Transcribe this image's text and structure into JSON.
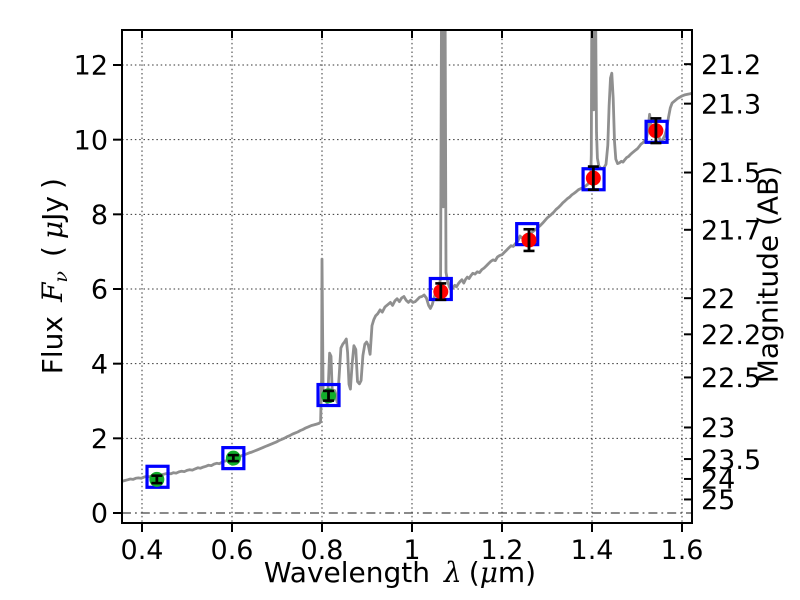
{
  "chart_data": {
    "type": "line",
    "description": "Galaxy SED: gray model spectrum with photometric points (green/red circles, black error bars) and blue squares for model photometry",
    "xlabel": {
      "word": "Wavelength",
      "lambda": "λ",
      "open": "(",
      "mu": "μ",
      "close": "m)"
    },
    "ylabel_left": {
      "word": "Flux",
      "f": "F",
      "nu": "ν",
      "open": "(",
      "mu": "μ",
      "unit": "Jy",
      "close": ")"
    },
    "ylabel_right": "Magnitude (AB)",
    "xlim": [
      0.356,
      1.622
    ],
    "ylim": [
      -0.27,
      12.94
    ],
    "grid": "dotted at major ticks; dash-dot horizontal line at flux 0; no legend; no title",
    "x_ticks": [
      {
        "v": 0.4,
        "label": "0.4"
      },
      {
        "v": 0.6,
        "label": "0.6"
      },
      {
        "v": 0.8,
        "label": "0.8"
      },
      {
        "v": 1.0,
        "label": "1"
      },
      {
        "v": 1.2,
        "label": "1.2"
      },
      {
        "v": 1.4,
        "label": "1.4"
      },
      {
        "v": 1.6,
        "label": "1.6"
      }
    ],
    "y_ticks_flux": [
      {
        "v": 0,
        "label": "0"
      },
      {
        "v": 2,
        "label": "2"
      },
      {
        "v": 4,
        "label": "4"
      },
      {
        "v": 6,
        "label": "6"
      },
      {
        "v": 8,
        "label": "8"
      },
      {
        "v": 10,
        "label": "10"
      },
      {
        "v": 12,
        "label": "12"
      }
    ],
    "y_ticks_mag": [
      {
        "label": "21.2",
        "flux": 12.023
      },
      {
        "label": "21.3",
        "flux": 10.965
      },
      {
        "label": "21.5",
        "flux": 9.12
      },
      {
        "label": "21.7",
        "flux": 7.586
      },
      {
        "label": "22",
        "flux": 5.754
      },
      {
        "label": "22.2",
        "flux": 4.786
      },
      {
        "label": "22.5",
        "flux": 3.631
      },
      {
        "label": "23",
        "flux": 2.291
      },
      {
        "label": "23.5",
        "flux": 1.445
      },
      {
        "label": "24",
        "flux": 0.912
      },
      {
        "label": "25",
        "flux": 0.363
      }
    ],
    "colors": {
      "spectrum": "#8f8f8f",
      "green_points": "#12ad2b",
      "red_points": "#ff0000",
      "model_squares": "#0000ff",
      "error_bars": "#000000",
      "grid": "#333333",
      "zero_line": "#444444",
      "frame": "#000000"
    },
    "photometry": [
      {
        "lam": 0.433,
        "flux": 0.9,
        "err": 0.1,
        "model_lam": 0.4345,
        "model_flux": 0.97,
        "color": "green"
      },
      {
        "lam": 0.603,
        "flux": 1.47,
        "err": 0.08,
        "model_lam": 0.603,
        "model_flux": 1.47,
        "color": "green"
      },
      {
        "lam": 0.8145,
        "flux": 3.14,
        "err": 0.13,
        "model_lam": 0.8145,
        "model_flux": 3.16,
        "color": "green"
      },
      {
        "lam": 1.064,
        "flux": 5.93,
        "err": 0.22,
        "model_lam": 1.064,
        "model_flux": 6.0,
        "color": "red"
      },
      {
        "lam": 1.26,
        "flux": 7.31,
        "err": 0.29,
        "model_lam": 1.256,
        "model_flux": 7.47,
        "color": "red"
      },
      {
        "lam": 1.403,
        "flux": 8.97,
        "err": 0.31,
        "model_lam": 1.4035,
        "model_flux": 8.94,
        "color": "red"
      },
      {
        "lam": 1.542,
        "flux": 10.24,
        "err": 0.33,
        "model_lam": 1.5435,
        "model_flux": 10.21,
        "color": "red"
      }
    ],
    "spectrum": [
      [
        0.356,
        0.85
      ],
      [
        0.362,
        0.87
      ],
      [
        0.368,
        0.89
      ],
      [
        0.374,
        0.91
      ],
      [
        0.38,
        0.9
      ],
      [
        0.386,
        0.93
      ],
      [
        0.392,
        0.94
      ],
      [
        0.398,
        0.93
      ],
      [
        0.404,
        0.96
      ],
      [
        0.41,
        0.98
      ],
      [
        0.416,
        0.97
      ],
      [
        0.422,
        0.99
      ],
      [
        0.428,
        1.01
      ],
      [
        0.434,
        1.02
      ],
      [
        0.44,
        1.01
      ],
      [
        0.446,
        1.03
      ],
      [
        0.452,
        1.05
      ],
      [
        0.458,
        1.06
      ],
      [
        0.464,
        1.05
      ],
      [
        0.47,
        1.08
      ],
      [
        0.476,
        1.07
      ],
      [
        0.482,
        1.1
      ],
      [
        0.488,
        1.12
      ],
      [
        0.494,
        1.11
      ],
      [
        0.5,
        1.14
      ],
      [
        0.506,
        1.16
      ],
      [
        0.512,
        1.15
      ],
      [
        0.518,
        1.18
      ],
      [
        0.524,
        1.21
      ],
      [
        0.53,
        1.2
      ],
      [
        0.536,
        1.23
      ],
      [
        0.542,
        1.25
      ],
      [
        0.548,
        1.28
      ],
      [
        0.554,
        1.27
      ],
      [
        0.56,
        1.31
      ],
      [
        0.566,
        1.33
      ],
      [
        0.572,
        1.32
      ],
      [
        0.578,
        1.36
      ],
      [
        0.584,
        1.39
      ],
      [
        0.59,
        1.41
      ],
      [
        0.596,
        1.43
      ],
      [
        0.602,
        1.46
      ],
      [
        0.608,
        1.48
      ],
      [
        0.614,
        1.5
      ],
      [
        0.62,
        1.53
      ],
      [
        0.626,
        1.55
      ],
      [
        0.632,
        1.58
      ],
      [
        0.638,
        1.61
      ],
      [
        0.644,
        1.63
      ],
      [
        0.65,
        1.66
      ],
      [
        0.656,
        1.69
      ],
      [
        0.662,
        1.72
      ],
      [
        0.668,
        1.75
      ],
      [
        0.674,
        1.78
      ],
      [
        0.68,
        1.81
      ],
      [
        0.686,
        1.84
      ],
      [
        0.692,
        1.87
      ],
      [
        0.698,
        1.9
      ],
      [
        0.704,
        1.94
      ],
      [
        0.71,
        1.97
      ],
      [
        0.716,
        2.0
      ],
      [
        0.722,
        2.04
      ],
      [
        0.728,
        2.07
      ],
      [
        0.734,
        2.11
      ],
      [
        0.74,
        2.14
      ],
      [
        0.746,
        2.17
      ],
      [
        0.752,
        2.21
      ],
      [
        0.758,
        2.24
      ],
      [
        0.764,
        2.28
      ],
      [
        0.77,
        2.31
      ],
      [
        0.776,
        2.34
      ],
      [
        0.782,
        2.36
      ],
      [
        0.788,
        2.38
      ],
      [
        0.793,
        2.4
      ],
      [
        0.797,
        2.44
      ],
      [
        0.799,
        3.6
      ],
      [
        0.8,
        6.8
      ],
      [
        0.801,
        5.2
      ],
      [
        0.8025,
        3.3
      ],
      [
        0.8035,
        3.02
      ],
      [
        0.806,
        3.14
      ],
      [
        0.809,
        3.02
      ],
      [
        0.8115,
        2.93
      ],
      [
        0.8145,
        3.55
      ],
      [
        0.817,
        4.28
      ],
      [
        0.82,
        4.2
      ],
      [
        0.8225,
        3.35
      ],
      [
        0.825,
        3.02
      ],
      [
        0.828,
        3.28
      ],
      [
        0.831,
        3.08
      ],
      [
        0.834,
        2.96
      ],
      [
        0.838,
        3.65
      ],
      [
        0.842,
        4.42
      ],
      [
        0.846,
        4.52
      ],
      [
        0.85,
        4.58
      ],
      [
        0.854,
        4.66
      ],
      [
        0.857,
        4.3
      ],
      [
        0.86,
        3.45
      ],
      [
        0.863,
        3.32
      ],
      [
        0.867,
        3.98
      ],
      [
        0.871,
        4.48
      ],
      [
        0.875,
        4.38
      ],
      [
        0.879,
        3.52
      ],
      [
        0.883,
        3.46
      ],
      [
        0.887,
        3.55
      ],
      [
        0.891,
        4.22
      ],
      [
        0.895,
        4.52
      ],
      [
        0.899,
        4.58
      ],
      [
        0.903,
        4.48
      ],
      [
        0.907,
        4.25
      ],
      [
        0.911,
        5.02
      ],
      [
        0.915,
        5.18
      ],
      [
        0.919,
        5.28
      ],
      [
        0.924,
        5.34
      ],
      [
        0.929,
        5.44
      ],
      [
        0.934,
        5.38
      ],
      [
        0.94,
        5.52
      ],
      [
        0.946,
        5.58
      ],
      [
        0.952,
        5.64
      ],
      [
        0.957,
        5.56
      ],
      [
        0.962,
        5.68
      ],
      [
        0.967,
        5.74
      ],
      [
        0.972,
        5.66
      ],
      [
        0.977,
        5.76
      ],
      [
        0.982,
        5.8
      ],
      [
        0.987,
        5.7
      ],
      [
        0.992,
        5.64
      ],
      [
        0.997,
        5.7
      ],
      [
        1.002,
        5.64
      ],
      [
        1.007,
        5.66
      ],
      [
        1.012,
        5.72
      ],
      [
        1.017,
        5.78
      ],
      [
        1.022,
        5.8
      ],
      [
        1.027,
        5.84
      ],
      [
        1.032,
        5.76
      ],
      [
        1.037,
        5.56
      ],
      [
        1.041,
        5.48
      ],
      [
        1.045,
        5.58
      ],
      [
        1.049,
        5.76
      ],
      [
        1.053,
        5.92
      ],
      [
        1.057,
        6.0
      ],
      [
        1.061,
        6.1
      ],
      [
        1.0635,
        6.3
      ],
      [
        1.0655,
        13.5
      ],
      [
        1.0675,
        13.5
      ],
      [
        1.0695,
        8.2
      ],
      [
        1.0715,
        13.5
      ],
      [
        1.0735,
        13.5
      ],
      [
        1.0755,
        6.45
      ],
      [
        1.079,
        6.22
      ],
      [
        1.083,
        6.06
      ],
      [
        1.087,
        5.98
      ],
      [
        1.091,
        6.04
      ],
      [
        1.095,
        6.1
      ],
      [
        1.099,
        6.06
      ],
      [
        1.103,
        6.14
      ],
      [
        1.107,
        6.2
      ],
      [
        1.111,
        6.25
      ],
      [
        1.115,
        6.16
      ],
      [
        1.119,
        6.26
      ],
      [
        1.123,
        6.32
      ],
      [
        1.127,
        6.28
      ],
      [
        1.131,
        6.36
      ],
      [
        1.135,
        6.42
      ],
      [
        1.14,
        6.4
      ],
      [
        1.145,
        6.46
      ],
      [
        1.15,
        6.44
      ],
      [
        1.155,
        6.52
      ],
      [
        1.16,
        6.56
      ],
      [
        1.165,
        6.62
      ],
      [
        1.17,
        6.68
      ],
      [
        1.175,
        6.74
      ],
      [
        1.18,
        6.78
      ],
      [
        1.185,
        6.76
      ],
      [
        1.19,
        6.86
      ],
      [
        1.195,
        6.9
      ],
      [
        1.2,
        6.92
      ],
      [
        1.205,
        6.98
      ],
      [
        1.21,
        7.04
      ],
      [
        1.215,
        7.1
      ],
      [
        1.22,
        7.16
      ],
      [
        1.225,
        7.14
      ],
      [
        1.23,
        7.22
      ],
      [
        1.235,
        7.28
      ],
      [
        1.24,
        7.42
      ],
      [
        1.245,
        7.36
      ],
      [
        1.25,
        7.4
      ],
      [
        1.255,
        7.44
      ],
      [
        1.26,
        7.46
      ],
      [
        1.265,
        7.5
      ],
      [
        1.27,
        7.55
      ],
      [
        1.275,
        7.6
      ],
      [
        1.28,
        7.65
      ],
      [
        1.285,
        7.7
      ],
      [
        1.29,
        7.76
      ],
      [
        1.295,
        7.83
      ],
      [
        1.3,
        7.9
      ],
      [
        1.305,
        7.95
      ],
      [
        1.31,
        8.0
      ],
      [
        1.315,
        8.06
      ],
      [
        1.32,
        8.13
      ],
      [
        1.325,
        8.18
      ],
      [
        1.33,
        8.24
      ],
      [
        1.335,
        8.31
      ],
      [
        1.34,
        8.36
      ],
      [
        1.345,
        8.42
      ],
      [
        1.35,
        8.46
      ],
      [
        1.355,
        8.52
      ],
      [
        1.36,
        8.56
      ],
      [
        1.365,
        8.61
      ],
      [
        1.37,
        8.66
      ],
      [
        1.375,
        8.69
      ],
      [
        1.38,
        8.72
      ],
      [
        1.385,
        8.75
      ],
      [
        1.39,
        8.8
      ],
      [
        1.394,
        8.85
      ],
      [
        1.397,
        8.92
      ],
      [
        1.3985,
        9.6
      ],
      [
        1.3995,
        13.5
      ],
      [
        1.402,
        13.5
      ],
      [
        1.404,
        10.8
      ],
      [
        1.4055,
        13.5
      ],
      [
        1.408,
        13.5
      ],
      [
        1.41,
        10.2
      ],
      [
        1.412,
        9.5
      ],
      [
        1.415,
        9.3
      ],
      [
        1.419,
        9.24
      ],
      [
        1.423,
        9.22
      ],
      [
        1.427,
        9.26
      ],
      [
        1.431,
        9.34
      ],
      [
        1.435,
        9.85
      ],
      [
        1.438,
        10.9
      ],
      [
        1.441,
        11.65
      ],
      [
        1.444,
        11.78
      ],
      [
        1.447,
        11.1
      ],
      [
        1.45,
        9.95
      ],
      [
        1.453,
        9.48
      ],
      [
        1.457,
        9.36
      ],
      [
        1.461,
        9.38
      ],
      [
        1.465,
        9.42
      ],
      [
        1.469,
        9.4
      ],
      [
        1.473,
        9.46
      ],
      [
        1.477,
        9.52
      ],
      [
        1.481,
        9.55
      ],
      [
        1.485,
        9.6
      ],
      [
        1.489,
        9.64
      ],
      [
        1.493,
        9.68
      ],
      [
        1.497,
        9.72
      ],
      [
        1.501,
        9.76
      ],
      [
        1.505,
        9.82
      ],
      [
        1.509,
        9.88
      ],
      [
        1.513,
        9.92
      ],
      [
        1.517,
        9.96
      ],
      [
        1.521,
        10.02
      ],
      [
        1.525,
        10.35
      ],
      [
        1.528,
        10.68
      ],
      [
        1.531,
        10.42
      ],
      [
        1.534,
        10.18
      ],
      [
        1.538,
        10.12
      ],
      [
        1.542,
        10.18
      ],
      [
        1.546,
        10.24
      ],
      [
        1.55,
        10.02
      ],
      [
        1.554,
        9.96
      ],
      [
        1.558,
        10.02
      ],
      [
        1.562,
        10.12
      ],
      [
        1.566,
        10.3
      ],
      [
        1.57,
        10.6
      ],
      [
        1.574,
        10.85
      ],
      [
        1.578,
        10.98
      ],
      [
        1.582,
        11.02
      ],
      [
        1.586,
        11.06
      ],
      [
        1.59,
        11.1
      ],
      [
        1.594,
        11.13
      ],
      [
        1.598,
        11.16
      ],
      [
        1.602,
        11.18
      ],
      [
        1.606,
        11.2
      ],
      [
        1.61,
        11.21
      ],
      [
        1.614,
        11.22
      ],
      [
        1.618,
        11.23
      ],
      [
        1.622,
        11.24
      ]
    ]
  }
}
